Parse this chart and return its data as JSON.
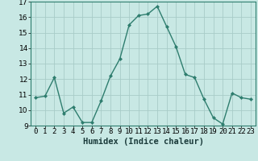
{
  "x": [
    0,
    1,
    2,
    3,
    4,
    5,
    6,
    7,
    8,
    9,
    10,
    11,
    12,
    13,
    14,
    15,
    16,
    17,
    18,
    19,
    20,
    21,
    22,
    23
  ],
  "y": [
    10.8,
    10.9,
    12.1,
    9.8,
    10.2,
    9.2,
    9.2,
    10.6,
    12.2,
    13.3,
    15.5,
    16.1,
    16.2,
    16.7,
    15.4,
    14.1,
    12.3,
    12.1,
    10.7,
    9.5,
    9.1,
    11.1,
    10.8,
    10.7
  ],
  "xlabel": "Humidex (Indice chaleur)",
  "ylim": [
    9,
    17
  ],
  "xlim": [
    -0.5,
    23.5
  ],
  "yticks": [
    9,
    10,
    11,
    12,
    13,
    14,
    15,
    16,
    17
  ],
  "xtick_labels": [
    "0",
    "1",
    "2",
    "3",
    "4",
    "5",
    "6",
    "7",
    "8",
    "9",
    "10",
    "11",
    "12",
    "13",
    "14",
    "15",
    "16",
    "17",
    "18",
    "19",
    "20",
    "21",
    "22",
    "23"
  ],
  "line_color": "#2e7d6e",
  "marker": "D",
  "marker_size": 2.0,
  "bg_color": "#c8e8e4",
  "grid_color": "#a8ccc8",
  "xlabel_fontsize": 7.5,
  "tick_fontsize": 6.5,
  "linewidth": 1.0
}
